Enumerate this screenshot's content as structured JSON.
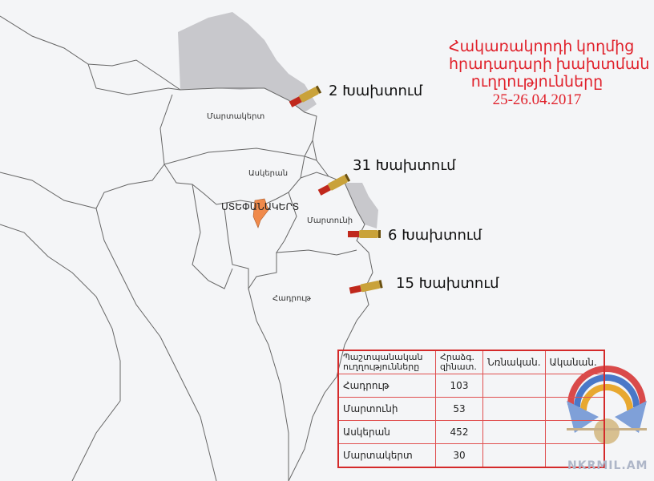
{
  "title": {
    "lines": [
      "Հակառակորդի կողմից",
      "հրադադարի խախտման",
      "ուղղությունները",
      "25-26.04.2017"
    ],
    "color": "#e0202a"
  },
  "regions": {
    "martakert": "Մարտակերտ",
    "askeran": "Ասկերան",
    "stepanakert": "ՍՏԵՓԱՆԱԿԵՐՏ",
    "martuni": "Մարտունի",
    "hadrut": "Հադրութ"
  },
  "violations": [
    {
      "count": 2,
      "label": "2 Խախտում"
    },
    {
      "count": 31,
      "label": "31 Խախտում"
    },
    {
      "count": 6,
      "label": "6 Խախտում"
    },
    {
      "count": 15,
      "label": "15 Խախտում"
    }
  ],
  "table": {
    "headers": [
      "Պաշտպանական ուղղությունները",
      "Հրաձգ. զինատ.",
      " Նռնական.",
      "Ականան."
    ],
    "rows": [
      {
        "direction": "Հադրութ",
        "small_arms": "103",
        "grenade": "",
        "mortar": ""
      },
      {
        "direction": "Մարտունի",
        "small_arms": "53",
        "grenade": "",
        "mortar": ""
      },
      {
        "direction": "Ասկերան",
        "small_arms": "452",
        "grenade": "",
        "mortar": ""
      },
      {
        "direction": "Մարտակերտ",
        "small_arms": "30",
        "grenade": "",
        "mortar": ""
      }
    ]
  },
  "watermark": "NKRMIL.AM",
  "icons": {
    "bullet": "rifle-cartridge-icon",
    "logo": "defense-army-emblem"
  },
  "colors": {
    "stepanakert": "#f08a4b",
    "occupied": "#c8c8cc",
    "table_border": "#d42a2a"
  }
}
